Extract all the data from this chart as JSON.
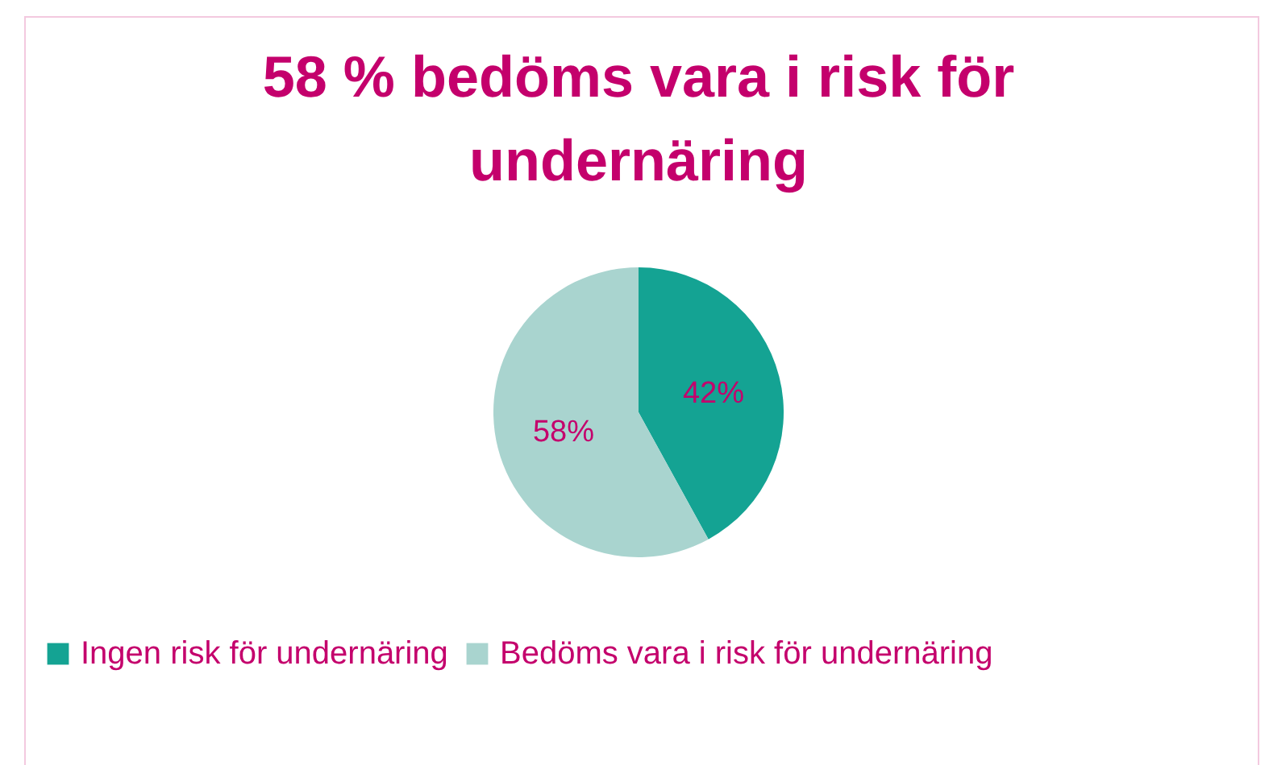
{
  "chart_data": {
    "type": "pie",
    "title": "58 % bedöms vara i risk för undernäring",
    "categories": [
      "Ingen risk för undernäring",
      "Bedöms vara i risk för undernäring"
    ],
    "values": [
      42,
      58
    ],
    "colors": [
      "#14a393",
      "#a9d4cf"
    ],
    "value_labels": [
      "42%",
      "58%"
    ],
    "legend": "bottom"
  }
}
